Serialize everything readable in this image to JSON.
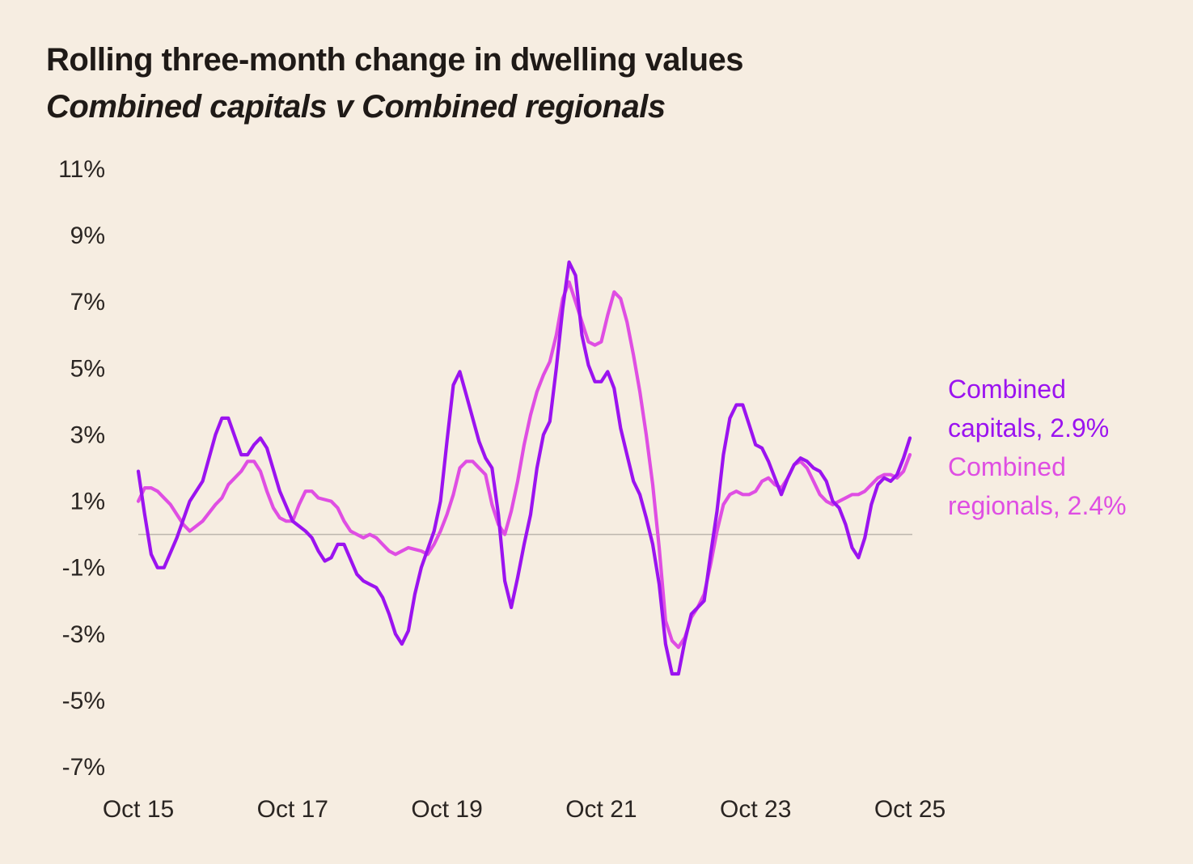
{
  "header": {
    "title": "Rolling three-month change in dwelling values",
    "subtitle": "Combined capitals v Combined regionals"
  },
  "chart_data": {
    "type": "line",
    "title": "Rolling three-month change in dwelling values",
    "subtitle": "Combined capitals v Combined regionals",
    "xlabel": "",
    "ylabel": "",
    "x_ticks": [
      {
        "label": "Oct 15",
        "index": 0
      },
      {
        "label": "Oct 17",
        "index": 24
      },
      {
        "label": "Oct 19",
        "index": 48
      },
      {
        "label": "Oct 21",
        "index": 72
      },
      {
        "label": "Oct 23",
        "index": 96
      },
      {
        "label": "Oct 25",
        "index": 120
      }
    ],
    "y_ticks": [
      {
        "value": 11,
        "label": "11%"
      },
      {
        "value": 9,
        "label": "9%"
      },
      {
        "value": 7,
        "label": "7%"
      },
      {
        "value": 5,
        "label": "5%"
      },
      {
        "value": 3,
        "label": "3%"
      },
      {
        "value": 1,
        "label": "1%"
      },
      {
        "value": -1,
        "label": "-1%"
      },
      {
        "value": -3,
        "label": "-3%"
      },
      {
        "value": -5,
        "label": "-5%"
      },
      {
        "value": -7,
        "label": "-7%"
      }
    ],
    "ylim": [
      -7,
      11
    ],
    "x_range": [
      0,
      120
    ],
    "zero_line": true,
    "grid": false,
    "legend_position": "right",
    "colors": {
      "capitals": "#9b13f0",
      "regionals": "#df4ee3",
      "zero_line": "#bdb6ad"
    },
    "series": [
      {
        "name": "Combined capitals",
        "label_lines": [
          "Combined",
          "capitals, 2.9%"
        ],
        "latest": "2.9%",
        "color": "#9b13f0",
        "points": [
          [
            0,
            1.9
          ],
          [
            1,
            0.6
          ],
          [
            2,
            -0.6
          ],
          [
            3,
            -1.0
          ],
          [
            4,
            -1.0
          ],
          [
            6,
            -0.1
          ],
          [
            8,
            1.0
          ],
          [
            10,
            1.6
          ],
          [
            12,
            3.0
          ],
          [
            13,
            3.5
          ],
          [
            14,
            3.5
          ],
          [
            16,
            2.4
          ],
          [
            17,
            2.4
          ],
          [
            18,
            2.7
          ],
          [
            19,
            2.9
          ],
          [
            20,
            2.6
          ],
          [
            22,
            1.3
          ],
          [
            24,
            0.4
          ],
          [
            26,
            0.1
          ],
          [
            27,
            -0.1
          ],
          [
            28,
            -0.5
          ],
          [
            29,
            -0.8
          ],
          [
            30,
            -0.7
          ],
          [
            31,
            -0.3
          ],
          [
            32,
            -0.3
          ],
          [
            34,
            -1.2
          ],
          [
            35,
            -1.4
          ],
          [
            36,
            -1.5
          ],
          [
            37,
            -1.6
          ],
          [
            38,
            -1.9
          ],
          [
            39,
            -2.4
          ],
          [
            40,
            -3.0
          ],
          [
            41,
            -3.3
          ],
          [
            42,
            -2.9
          ],
          [
            43,
            -1.8
          ],
          [
            44,
            -1.0
          ],
          [
            46,
            0.1
          ],
          [
            47,
            1.0
          ],
          [
            48,
            2.8
          ],
          [
            49,
            4.5
          ],
          [
            50,
            4.9
          ],
          [
            51,
            4.2
          ],
          [
            52,
            3.5
          ],
          [
            53,
            2.8
          ],
          [
            54,
            2.3
          ],
          [
            55,
            2.0
          ],
          [
            56,
            0.6
          ],
          [
            57,
            -1.4
          ],
          [
            58,
            -2.2
          ],
          [
            59,
            -1.3
          ],
          [
            60,
            -0.3
          ],
          [
            61,
            0.6
          ],
          [
            62,
            2.0
          ],
          [
            63,
            3.0
          ],
          [
            64,
            3.4
          ],
          [
            65,
            5.0
          ],
          [
            66,
            6.8
          ],
          [
            67,
            8.2
          ],
          [
            68,
            7.8
          ],
          [
            69,
            6.0
          ],
          [
            70,
            5.1
          ],
          [
            71,
            4.6
          ],
          [
            72,
            4.6
          ],
          [
            73,
            4.9
          ],
          [
            74,
            4.4
          ],
          [
            75,
            3.2
          ],
          [
            76,
            2.4
          ],
          [
            77,
            1.6
          ],
          [
            78,
            1.2
          ],
          [
            79,
            0.5
          ],
          [
            80,
            -0.3
          ],
          [
            81,
            -1.5
          ],
          [
            82,
            -3.3
          ],
          [
            83,
            -4.2
          ],
          [
            84,
            -4.2
          ],
          [
            85,
            -3.2
          ],
          [
            86,
            -2.4
          ],
          [
            87,
            -2.2
          ],
          [
            88,
            -2.0
          ],
          [
            89,
            -0.6
          ],
          [
            90,
            0.7
          ],
          [
            91,
            2.4
          ],
          [
            92,
            3.5
          ],
          [
            93,
            3.9
          ],
          [
            94,
            3.9
          ],
          [
            95,
            3.3
          ],
          [
            96,
            2.7
          ],
          [
            97,
            2.6
          ],
          [
            98,
            2.2
          ],
          [
            99,
            1.7
          ],
          [
            100,
            1.2
          ],
          [
            101,
            1.7
          ],
          [
            102,
            2.1
          ],
          [
            103,
            2.3
          ],
          [
            104,
            2.2
          ],
          [
            105,
            2.0
          ],
          [
            106,
            1.9
          ],
          [
            107,
            1.6
          ],
          [
            108,
            1.0
          ],
          [
            109,
            0.8
          ],
          [
            110,
            0.3
          ],
          [
            111,
            -0.4
          ],
          [
            112,
            -0.7
          ],
          [
            113,
            -0.1
          ],
          [
            114,
            0.9
          ],
          [
            115,
            1.5
          ],
          [
            116,
            1.7
          ],
          [
            117,
            1.6
          ],
          [
            118,
            1.8
          ],
          [
            119,
            2.3
          ],
          [
            120,
            2.9
          ]
        ]
      },
      {
        "name": "Combined regionals",
        "label_lines": [
          "Combined",
          "regionals, 2.4%"
        ],
        "latest": "2.4%",
        "color": "#df4ee3",
        "points": [
          [
            0,
            1.0
          ],
          [
            1,
            1.4
          ],
          [
            2,
            1.4
          ],
          [
            3,
            1.3
          ],
          [
            4,
            1.1
          ],
          [
            5,
            0.9
          ],
          [
            6,
            0.6
          ],
          [
            7,
            0.3
          ],
          [
            8,
            0.1
          ],
          [
            10,
            0.4
          ],
          [
            12,
            0.9
          ],
          [
            13,
            1.1
          ],
          [
            14,
            1.5
          ],
          [
            16,
            1.9
          ],
          [
            17,
            2.2
          ],
          [
            18,
            2.2
          ],
          [
            19,
            1.9
          ],
          [
            20,
            1.3
          ],
          [
            21,
            0.8
          ],
          [
            22,
            0.5
          ],
          [
            23,
            0.4
          ],
          [
            24,
            0.4
          ],
          [
            25,
            0.9
          ],
          [
            26,
            1.3
          ],
          [
            27,
            1.3
          ],
          [
            28,
            1.1
          ],
          [
            30,
            1.0
          ],
          [
            31,
            0.8
          ],
          [
            32,
            0.4
          ],
          [
            33,
            0.1
          ],
          [
            34,
            0.0
          ],
          [
            35,
            -0.1
          ],
          [
            36,
            0.0
          ],
          [
            37,
            -0.1
          ],
          [
            38,
            -0.3
          ],
          [
            39,
            -0.5
          ],
          [
            40,
            -0.6
          ],
          [
            41,
            -0.5
          ],
          [
            42,
            -0.4
          ],
          [
            44,
            -0.5
          ],
          [
            45,
            -0.6
          ],
          [
            46,
            -0.3
          ],
          [
            47,
            0.1
          ],
          [
            48,
            0.6
          ],
          [
            49,
            1.2
          ],
          [
            50,
            2.0
          ],
          [
            51,
            2.2
          ],
          [
            52,
            2.2
          ],
          [
            53,
            2.0
          ],
          [
            54,
            1.8
          ],
          [
            55,
            0.9
          ],
          [
            56,
            0.3
          ],
          [
            57,
            0.0
          ],
          [
            58,
            0.7
          ],
          [
            59,
            1.6
          ],
          [
            60,
            2.7
          ],
          [
            61,
            3.6
          ],
          [
            62,
            4.3
          ],
          [
            63,
            4.8
          ],
          [
            64,
            5.2
          ],
          [
            65,
            6.0
          ],
          [
            66,
            7.1
          ],
          [
            67,
            7.6
          ],
          [
            68,
            7.0
          ],
          [
            69,
            6.4
          ],
          [
            70,
            5.8
          ],
          [
            71,
            5.7
          ],
          [
            72,
            5.8
          ],
          [
            73,
            6.6
          ],
          [
            74,
            7.3
          ],
          [
            75,
            7.1
          ],
          [
            76,
            6.4
          ],
          [
            77,
            5.4
          ],
          [
            78,
            4.3
          ],
          [
            79,
            3.0
          ],
          [
            80,
            1.5
          ],
          [
            81,
            -0.4
          ],
          [
            82,
            -2.6
          ],
          [
            83,
            -3.2
          ],
          [
            84,
            -3.4
          ],
          [
            85,
            -3.1
          ],
          [
            86,
            -2.5
          ],
          [
            87,
            -2.2
          ],
          [
            88,
            -1.8
          ],
          [
            89,
            -0.9
          ],
          [
            90,
            0.1
          ],
          [
            91,
            0.9
          ],
          [
            92,
            1.2
          ],
          [
            93,
            1.3
          ],
          [
            94,
            1.2
          ],
          [
            95,
            1.2
          ],
          [
            96,
            1.3
          ],
          [
            97,
            1.6
          ],
          [
            98,
            1.7
          ],
          [
            99,
            1.5
          ],
          [
            100,
            1.4
          ],
          [
            101,
            1.7
          ],
          [
            102,
            2.1
          ],
          [
            103,
            2.2
          ],
          [
            104,
            2.0
          ],
          [
            105,
            1.6
          ],
          [
            106,
            1.2
          ],
          [
            107,
            1.0
          ],
          [
            108,
            0.9
          ],
          [
            109,
            1.0
          ],
          [
            110,
            1.1
          ],
          [
            111,
            1.2
          ],
          [
            112,
            1.2
          ],
          [
            113,
            1.3
          ],
          [
            114,
            1.5
          ],
          [
            115,
            1.7
          ],
          [
            116,
            1.8
          ],
          [
            117,
            1.8
          ],
          [
            118,
            1.7
          ],
          [
            119,
            1.9
          ],
          [
            120,
            2.4
          ]
        ]
      }
    ]
  }
}
